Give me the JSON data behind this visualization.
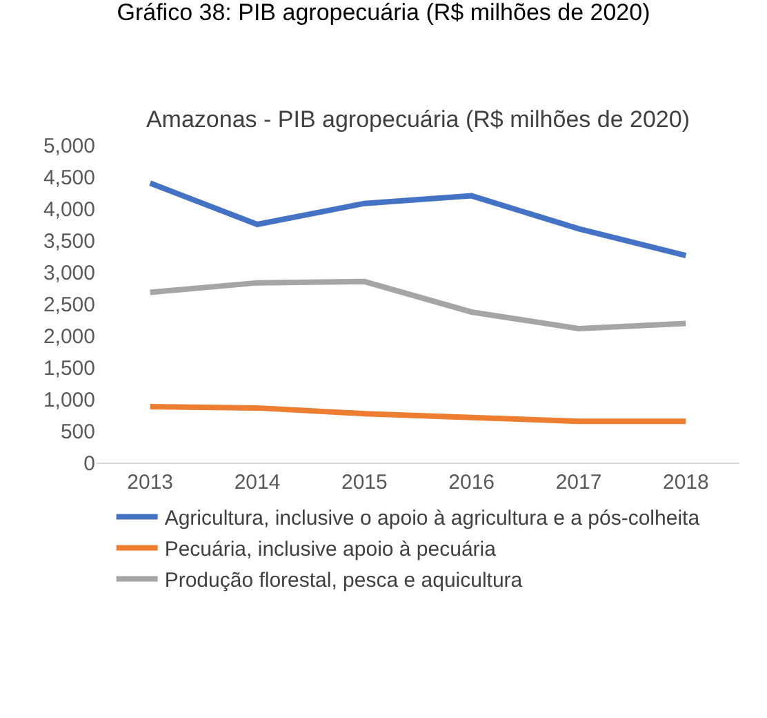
{
  "chart_data": {
    "type": "line",
    "title": "Gráfico 38: PIB agropecuária (R$ milhões de 2020)",
    "subtitle": "Amazonas - PIB agropecuária (R$ milhões de 2020)",
    "categories": [
      "2013",
      "2014",
      "2015",
      "2016",
      "2017",
      "2018"
    ],
    "series": [
      {
        "name": "Agricultura, inclusive o apoio à agricultura e a pós-colheita",
        "color": "#4472c4",
        "values": [
          4400,
          3750,
          4080,
          4200,
          3680,
          3260
        ]
      },
      {
        "name": "Pecuária, inclusive apoio à pecuária",
        "color": "#ed7d31",
        "values": [
          880,
          860,
          770,
          710,
          650,
          650
        ]
      },
      {
        "name": "Produção florestal, pesca e aquicultura",
        "color": "#a5a5a5",
        "values": [
          2680,
          2830,
          2850,
          2370,
          2110,
          2190
        ]
      }
    ],
    "ylim": [
      0,
      5000
    ],
    "yticks": [
      {
        "value": 0,
        "label": "0"
      },
      {
        "value": 500,
        "label": "500"
      },
      {
        "value": 1000,
        "label": "1,000"
      },
      {
        "value": 1500,
        "label": "1,500"
      },
      {
        "value": 2000,
        "label": "2,000"
      },
      {
        "value": 2500,
        "label": "2,500"
      },
      {
        "value": 3000,
        "label": "3,000"
      },
      {
        "value": 3500,
        "label": "3,500"
      },
      {
        "value": 4000,
        "label": "4,000"
      },
      {
        "value": 4500,
        "label": "4,500"
      },
      {
        "value": 5000,
        "label": "5,000"
      }
    ],
    "grid": false,
    "legend": "bottom",
    "marker": "none",
    "line_style": "solid"
  }
}
